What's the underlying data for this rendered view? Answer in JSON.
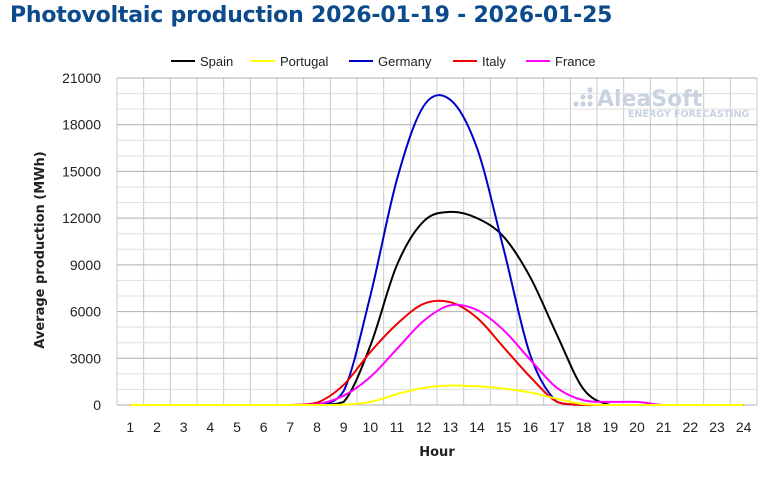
{
  "chart_data": {
    "type": "line",
    "title": "Photovoltaic production 2026-01-19 - 2026-01-25",
    "xlabel": "Hour",
    "ylabel": "Average production (MWh)",
    "x": [
      1,
      2,
      3,
      4,
      5,
      6,
      7,
      8,
      9,
      10,
      11,
      12,
      13,
      14,
      15,
      16,
      17,
      18,
      19,
      20,
      21,
      22,
      23,
      24
    ],
    "ylim": [
      0,
      21000
    ],
    "yticks": [
      0,
      3000,
      6000,
      9000,
      12000,
      15000,
      18000,
      21000
    ],
    "grid": true,
    "legend_position": "top",
    "series": [
      {
        "name": "Spain",
        "color": "#000000",
        "values": [
          0,
          0,
          0,
          0,
          0,
          0,
          0,
          0,
          200,
          3800,
          9000,
          11800,
          12400,
          12000,
          10800,
          8200,
          4500,
          1000,
          0,
          0,
          0,
          0,
          0,
          0
        ]
      },
      {
        "name": "Portugal",
        "color": "#ffff00",
        "values": [
          0,
          0,
          0,
          0,
          0,
          0,
          0,
          0,
          10,
          200,
          700,
          1100,
          1250,
          1200,
          1050,
          800,
          400,
          50,
          0,
          0,
          0,
          0,
          0,
          0
        ]
      },
      {
        "name": "Germany",
        "color": "#0000cc",
        "values": [
          0,
          0,
          0,
          0,
          0,
          0,
          0,
          0,
          900,
          7000,
          14500,
          19200,
          19600,
          16500,
          10000,
          3200,
          200,
          0,
          0,
          0,
          0,
          0,
          0,
          0
        ]
      },
      {
        "name": "Italy",
        "color": "#ee0000",
        "values": [
          0,
          0,
          0,
          0,
          0,
          0,
          0,
          150,
          1300,
          3400,
          5200,
          6500,
          6600,
          5600,
          3700,
          1800,
          200,
          0,
          0,
          0,
          0,
          0,
          0,
          0
        ]
      },
      {
        "name": "France",
        "color": "#ff00ff",
        "values": [
          0,
          0,
          0,
          0,
          0,
          0,
          0,
          50,
          600,
          1800,
          3600,
          5400,
          6400,
          6100,
          4800,
          2900,
          1100,
          300,
          200,
          200,
          0,
          0,
          0,
          0
        ]
      }
    ]
  },
  "watermark": {
    "brand": "AleaSoft",
    "tagline": "ENERGY FORECASTING"
  }
}
